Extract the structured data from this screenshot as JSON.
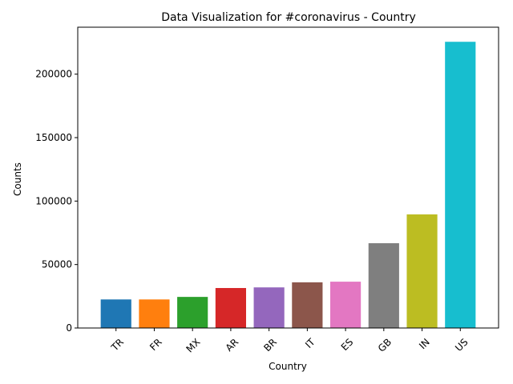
{
  "chart_data": {
    "type": "bar",
    "title": "Data Visualization for #coronavirus - Country",
    "xlabel": "Country",
    "ylabel": "Counts",
    "categories": [
      "TR",
      "FR",
      "MX",
      "AR",
      "BR",
      "IT",
      "ES",
      "GB",
      "IN",
      "US"
    ],
    "values": [
      22500,
      22500,
      24500,
      31500,
      32000,
      36000,
      36500,
      66800,
      89500,
      225500
    ],
    "colors": [
      "#1f77b4",
      "#ff7f0e",
      "#2ca02c",
      "#d62728",
      "#9467bd",
      "#8c564b",
      "#e377c2",
      "#7f7f7f",
      "#bcbd22",
      "#17becf"
    ],
    "yticks": [
      0,
      50000,
      100000,
      150000,
      200000
    ],
    "ylim": [
      0,
      237000
    ],
    "grid": false,
    "legend": false
  }
}
